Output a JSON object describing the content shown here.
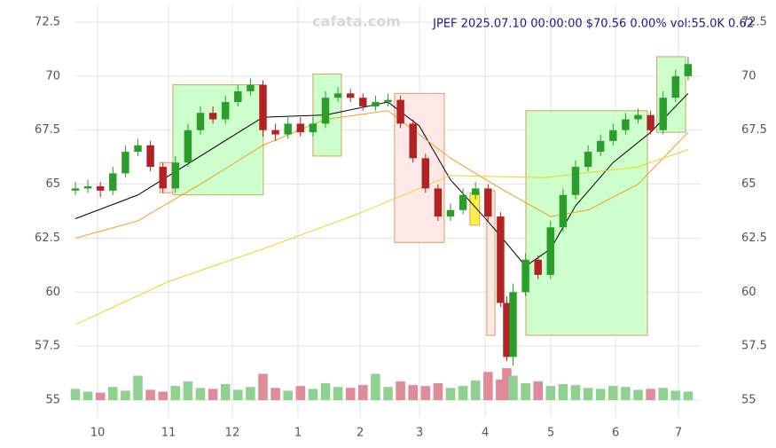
{
  "chart_data": {
    "type": "candlestick",
    "title": "JPEF 2025.07.10 00:00:00 $70.56 0.00% vol:55.0K 0.62",
    "watermark": "cafata.com",
    "xlim": [
      0,
      200
    ],
    "xticks": [
      {
        "value": 7.1,
        "label": "10"
      },
      {
        "value": 29.8,
        "label": "11"
      },
      {
        "value": 50.2,
        "label": "12"
      },
      {
        "value": 71.2,
        "label": "1"
      },
      {
        "value": 91.1,
        "label": "2"
      },
      {
        "value": 110.1,
        "label": "3"
      },
      {
        "value": 131.1,
        "label": "4"
      },
      {
        "value": 152.1,
        "label": "5"
      },
      {
        "value": 172.8,
        "label": "6"
      },
      {
        "value": 192.9,
        "label": "7"
      }
    ],
    "ylim": [
      54.2,
      73.3
    ],
    "yticks": [
      55.0,
      57.5,
      60.0,
      62.5,
      65.0,
      67.5,
      70.0,
      72.5
    ],
    "grid": true,
    "up_color": "#2a9d2a",
    "down_color": "#b22222",
    "x": [
      0,
      4,
      8,
      12,
      16,
      20,
      24,
      28,
      32,
      36,
      40,
      44,
      48,
      52,
      56,
      60,
      64,
      68,
      72,
      76,
      80,
      84,
      88,
      92,
      96,
      100,
      104,
      108,
      112,
      116,
      120,
      124,
      128,
      132,
      136,
      138,
      140,
      144,
      148,
      152,
      156,
      160,
      164,
      168,
      172,
      176,
      180,
      184,
      188,
      192,
      196
    ],
    "open": [
      64.7,
      64.8,
      64.9,
      64.7,
      65.5,
      66.5,
      66.8,
      65.8,
      64.8,
      66.0,
      67.5,
      68.3,
      68.0,
      68.8,
      69.3,
      69.6,
      67.5,
      67.3,
      67.8,
      67.4,
      67.8,
      69.0,
      69.2,
      69.0,
      68.6,
      68.8,
      68.9,
      67.8,
      66.2,
      64.8,
      63.5,
      63.8,
      64.5,
      64.8,
      63.5,
      59.5,
      57.0,
      60.0,
      61.5,
      60.8,
      63.0,
      64.5,
      65.8,
      66.5,
      67.0,
      67.5,
      68.0,
      68.2,
      67.5,
      69.0,
      70.0
    ],
    "high": [
      65.1,
      65.2,
      65.1,
      65.8,
      66.8,
      67.1,
      67.0,
      66.0,
      66.3,
      67.8,
      68.6,
      68.6,
      69.1,
      69.6,
      69.9,
      69.8,
      67.8,
      68.1,
      68.1,
      68.1,
      69.3,
      69.5,
      69.4,
      69.2,
      69.1,
      69.2,
      69.1,
      68.0,
      66.4,
      65.0,
      64.1,
      64.8,
      65.1,
      65.0,
      63.7,
      59.8,
      60.4,
      61.8,
      61.7,
      63.3,
      64.8,
      66.1,
      66.8,
      67.3,
      67.8,
      68.3,
      68.5,
      68.4,
      69.3,
      70.3,
      70.9
    ],
    "low": [
      64.5,
      64.6,
      64.4,
      64.5,
      65.3,
      66.3,
      65.6,
      64.6,
      64.6,
      65.8,
      67.3,
      67.8,
      67.8,
      68.6,
      69.1,
      67.2,
      67.0,
      67.1,
      67.2,
      67.2,
      67.6,
      68.8,
      68.8,
      68.4,
      68.4,
      68.6,
      67.6,
      66.0,
      64.6,
      63.3,
      63.3,
      63.6,
      64.3,
      63.3,
      59.3,
      56.8,
      56.6,
      59.8,
      60.6,
      60.6,
      62.8,
      64.3,
      65.6,
      66.3,
      66.8,
      67.3,
      67.8,
      67.3,
      67.3,
      68.8,
      69.8
    ],
    "close": [
      64.8,
      64.9,
      64.7,
      65.5,
      66.5,
      66.8,
      65.8,
      64.8,
      66.0,
      67.5,
      68.3,
      68.0,
      68.8,
      69.3,
      69.6,
      67.5,
      67.3,
      67.8,
      67.4,
      67.8,
      69.0,
      69.2,
      69.0,
      68.6,
      68.8,
      68.9,
      67.8,
      66.2,
      64.8,
      63.5,
      63.8,
      64.5,
      64.8,
      63.5,
      59.5,
      57.0,
      60.0,
      61.5,
      60.8,
      63.0,
      64.5,
      65.8,
      66.5,
      67.0,
      67.5,
      68.0,
      68.2,
      67.5,
      69.0,
      70.0,
      70.56
    ],
    "volume": [
      120,
      90,
      80,
      140,
      100,
      260,
      110,
      90,
      150,
      200,
      130,
      120,
      170,
      110,
      140,
      280,
      130,
      100,
      150,
      120,
      180,
      140,
      130,
      160,
      280,
      140,
      200,
      160,
      150,
      180,
      130,
      150,
      210,
      300,
      220,
      340,
      260,
      180,
      200,
      150,
      170,
      160,
      130,
      120,
      150,
      140,
      110,
      120,
      130,
      100,
      90
    ],
    "lines": [
      {
        "color": "#000000",
        "x": [
          0,
          20,
          40,
          60,
          80,
          100,
          110,
          120,
          130,
          136,
          144,
          152,
          160,
          172,
          184,
          196
        ],
        "values": [
          63.4,
          64.5,
          66.3,
          68.1,
          68.2,
          68.8,
          67.7,
          65.2,
          63.6,
          62.6,
          61.2,
          62.0,
          64.0,
          66.0,
          67.4,
          69.2
        ]
      },
      {
        "color": "#f0a020",
        "x": [
          0,
          20,
          40,
          60,
          80,
          100,
          120,
          136,
          152,
          164,
          180,
          196
        ],
        "values": [
          62.5,
          63.3,
          65.0,
          66.8,
          68.0,
          68.4,
          66.2,
          64.8,
          63.5,
          63.8,
          65.0,
          67.4
        ]
      },
      {
        "color": "#f5d020",
        "x": [
          0,
          30,
          60,
          90,
          120,
          150,
          180,
          196
        ],
        "values": [
          58.5,
          60.5,
          62.0,
          63.6,
          65.4,
          65.3,
          65.8,
          66.6
        ]
      }
    ],
    "zones": [
      {
        "color": "green",
        "x0": 31.2,
        "x1": 60.1,
        "y0": 64.5,
        "y1": 69.6
      },
      {
        "color": "red",
        "x0": 27.0,
        "x1": 31.2,
        "y0": 64.6,
        "y1": 66.0
      },
      {
        "color": "green",
        "x0": 76.0,
        "x1": 85.1,
        "y0": 66.3,
        "y1": 70.1
      },
      {
        "color": "red",
        "x0": 102.1,
        "x1": 118.0,
        "y0": 62.3,
        "y1": 69.2
      },
      {
        "color": "yellow",
        "x0": 126.2,
        "x1": 129.3,
        "y0": 63.1,
        "y1": 64.6
      },
      {
        "color": "red",
        "x0": 131.6,
        "x1": 134.2,
        "y0": 58.0,
        "y1": 64.7
      },
      {
        "color": "green",
        "x0": 144.1,
        "x1": 183.0,
        "y0": 58.0,
        "y1": 68.4
      },
      {
        "color": "green",
        "x0": 186.0,
        "x1": 195.2,
        "y0": 67.4,
        "y1": 70.9
      }
    ]
  }
}
